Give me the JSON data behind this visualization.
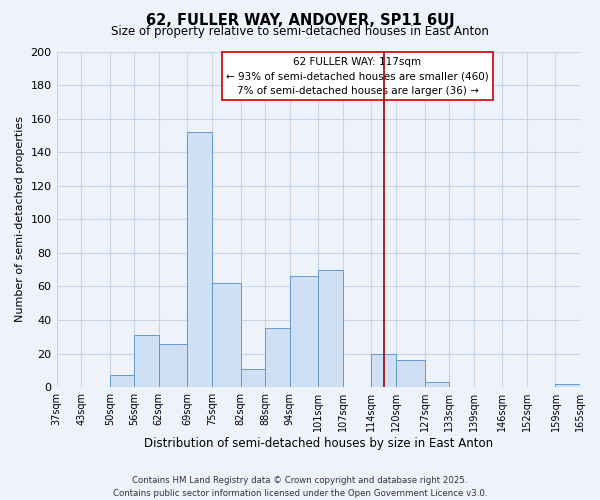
{
  "title": "62, FULLER WAY, ANDOVER, SP11 6UJ",
  "subtitle": "Size of property relative to semi-detached houses in East Anton",
  "xlabel": "Distribution of semi-detached houses by size in East Anton",
  "ylabel": "Number of semi-detached properties",
  "bin_edges": [
    37,
    43,
    50,
    56,
    62,
    69,
    75,
    82,
    88,
    94,
    101,
    107,
    114,
    120,
    127,
    133,
    139,
    146,
    152,
    159,
    165
  ],
  "bin_labels": [
    "37sqm",
    "43sqm",
    "50sqm",
    "56sqm",
    "62sqm",
    "69sqm",
    "75sqm",
    "82sqm",
    "88sqm",
    "94sqm",
    "101sqm",
    "107sqm",
    "114sqm",
    "120sqm",
    "127sqm",
    "133sqm",
    "139sqm",
    "146sqm",
    "152sqm",
    "159sqm",
    "165sqm"
  ],
  "bar_heights": [
    0,
    0,
    7,
    31,
    26,
    152,
    62,
    11,
    35,
    66,
    70,
    0,
    20,
    16,
    3,
    0,
    0,
    0,
    0,
    2
  ],
  "bar_color": "#cfe0f5",
  "bar_edge_color": "#6699cc",
  "grid_color": "#c8d4e8",
  "background_color": "#eef2fb",
  "vline_x": 117,
  "vline_color": "#990000",
  "ylim": [
    0,
    200
  ],
  "yticks": [
    0,
    20,
    40,
    60,
    80,
    100,
    120,
    140,
    160,
    180,
    200
  ],
  "annotation_title": "62 FULLER WAY: 117sqm",
  "annotation_line1": "← 93% of semi-detached houses are smaller (460)",
  "annotation_line2": "7% of semi-detached houses are larger (36) →",
  "footer1": "Contains HM Land Registry data © Crown copyright and database right 2025.",
  "footer2": "Contains public sector information licensed under the Open Government Licence v3.0."
}
